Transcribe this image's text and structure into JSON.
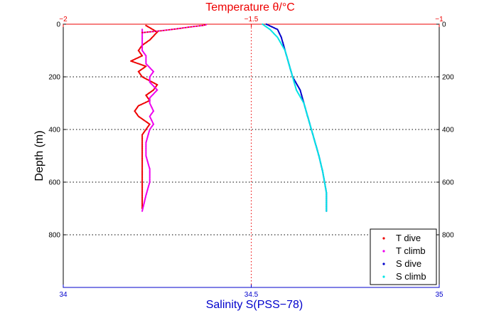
{
  "chart_data": {
    "type": "scatter",
    "title": "Temperature θ/°C",
    "xlabel_bottom": "Salinity S(PSS−78)",
    "ylabel": "Depth (m)",
    "x_bottom_lim": [
      34,
      35
    ],
    "x_top_lim": [
      -2,
      -1
    ],
    "ylim": [
      0,
      1000
    ],
    "y_reversed": true,
    "x_bottom_ticks": [
      "34",
      "34.5",
      "35"
    ],
    "x_top_ticks": [
      "−2",
      "−1.5",
      "−1"
    ],
    "y_ticks_left": [
      "0",
      "200",
      "400",
      "600",
      "800"
    ],
    "y_ticks_right": [
      "0",
      "200",
      "400",
      "600",
      "800"
    ],
    "grid": "dotted",
    "legend_position": "bottom-right",
    "colors": {
      "t_dive": "#ee0000",
      "t_climb": "#ee00ee",
      "s_dive": "#0000cc",
      "s_climb": "#00e5e5",
      "top_axis": "#ee0000",
      "bottom_axis": "#0000cc"
    },
    "series": [
      {
        "name": "T dive",
        "axis": "top",
        "color": "#ee0000",
        "x": [
          -1.78,
          -1.75,
          -1.77,
          -1.79,
          -1.8,
          -1.79,
          -1.82,
          -1.78,
          -1.8,
          -1.79,
          -1.75,
          -1.76,
          -1.78,
          -1.77,
          -1.8,
          -1.81,
          -1.8,
          -1.77,
          -1.78,
          -1.79,
          -1.79,
          -1.79,
          -1.79,
          -1.79,
          -1.79
        ],
        "y": [
          5,
          30,
          60,
          80,
          100,
          120,
          140,
          160,
          180,
          200,
          230,
          250,
          270,
          290,
          310,
          330,
          350,
          380,
          400,
          420,
          450,
          500,
          550,
          600,
          700
        ]
      },
      {
        "name": "T climb",
        "axis": "top",
        "color": "#ee00ee",
        "x": [
          -1.79,
          -1.78,
          -1.77,
          -1.77,
          -1.78,
          -1.78,
          -1.77,
          -1.76,
          -1.77,
          -1.76,
          -1.77,
          -1.77,
          -1.75,
          -1.77,
          -1.77,
          -1.76,
          -1.78,
          -1.78,
          -1.79,
          -1.79,
          -1.79,
          -1.79,
          -1.79
        ],
        "y": [
          710,
          650,
          600,
          550,
          500,
          450,
          400,
          380,
          350,
          330,
          300,
          280,
          250,
          220,
          200,
          180,
          150,
          120,
          100,
          80,
          60,
          40,
          20
        ]
      },
      {
        "name": "S dive",
        "axis": "bottom",
        "color": "#0000cc",
        "x": [
          34.54,
          34.57,
          34.58,
          34.59,
          34.6,
          34.61,
          34.63,
          34.64,
          34.65,
          34.66,
          34.67,
          34.68,
          34.69,
          34.7,
          34.7
        ],
        "y": [
          0,
          20,
          50,
          100,
          150,
          200,
          250,
          300,
          350,
          400,
          450,
          500,
          560,
          640,
          710
        ]
      },
      {
        "name": "S climb",
        "axis": "bottom",
        "color": "#00e5e5",
        "x": [
          34.7,
          34.7,
          34.69,
          34.68,
          34.67,
          34.66,
          34.65,
          34.64,
          34.62,
          34.61,
          34.6,
          34.59,
          34.57,
          34.55,
          34.53
        ],
        "y": [
          710,
          640,
          560,
          500,
          450,
          400,
          350,
          300,
          250,
          200,
          150,
          100,
          50,
          20,
          0
        ]
      }
    ],
    "temp_surface_plume": {
      "x": [
        -1.79,
        -1.74,
        -1.7,
        -1.66,
        -1.63,
        -1.62
      ],
      "y": [
        32,
        25,
        18,
        10,
        5,
        2
      ]
    }
  },
  "legend": {
    "items": [
      {
        "label": "T dive",
        "color": "#ee0000"
      },
      {
        "label": "T climb",
        "color": "#ee00ee"
      },
      {
        "label": "S dive",
        "color": "#0000cc"
      },
      {
        "label": "S climb",
        "color": "#00e5e5"
      }
    ]
  }
}
